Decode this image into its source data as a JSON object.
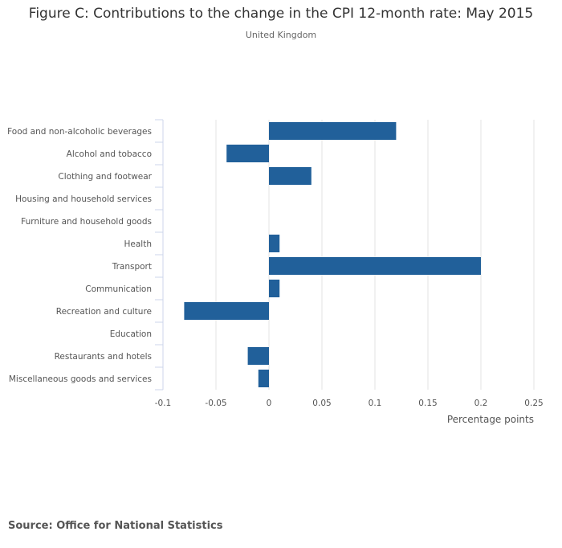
{
  "chart_data": {
    "type": "bar",
    "orientation": "horizontal",
    "title": "Figure C: Contributions to the change in the CPI 12-month rate: May 2015",
    "subtitle": "United Kingdom",
    "xlabel": "Percentage points",
    "ylabel": "",
    "xlim": [
      -0.1,
      0.25
    ],
    "xticks": [
      "-0.1",
      "-0.05",
      "0",
      "0.05",
      "0.1",
      "0.15",
      "0.2",
      "0.25"
    ],
    "grid": true,
    "categories": [
      "Food and non-alcoholic beverages",
      "Alcohol and tobacco",
      "Clothing and footwear",
      "Housing and household services",
      "Furniture and household goods",
      "Health",
      "Transport",
      "Communication",
      "Recreation and culture",
      "Education",
      "Restaurants and hotels",
      "Miscellaneous goods and services"
    ],
    "values": [
      0.12,
      -0.04,
      0.04,
      0,
      0,
      0.01,
      0.2,
      0.01,
      -0.08,
      0,
      -0.02,
      -0.01
    ],
    "bar_color": "#21609a"
  },
  "source": "Source: Office for National Statistics"
}
